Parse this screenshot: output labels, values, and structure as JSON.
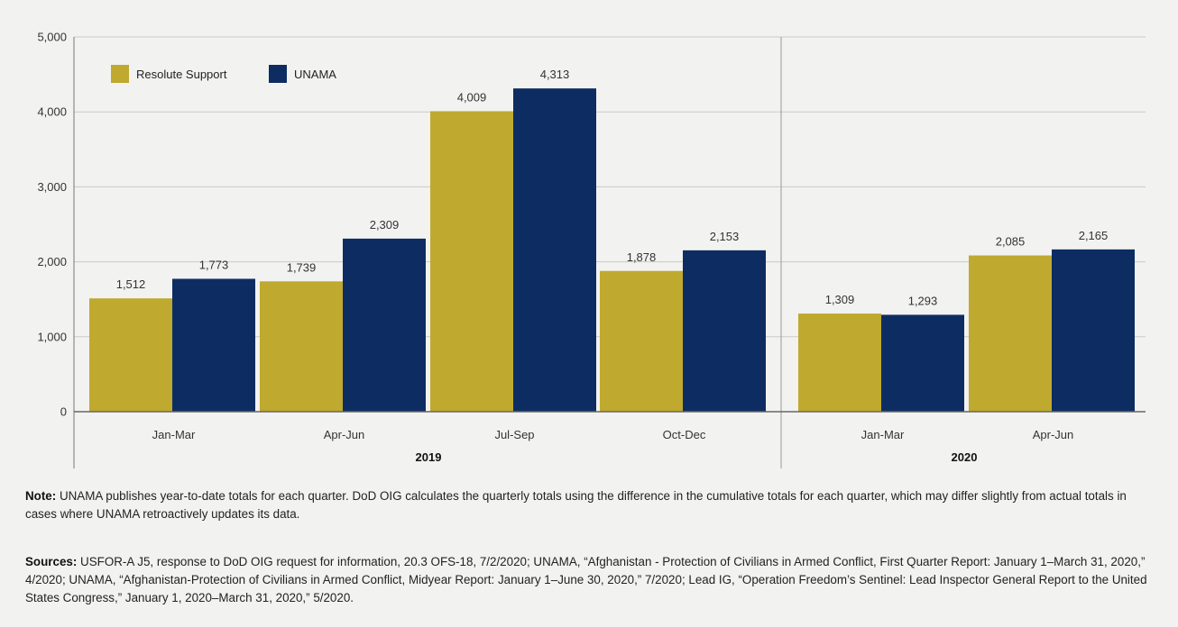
{
  "chart_data": {
    "type": "bar",
    "ylim": [
      0,
      5000
    ],
    "yticks": [
      "0",
      "1,000",
      "2,000",
      "3,000",
      "4,000",
      "5,000"
    ],
    "ytick_values": [
      0,
      1000,
      2000,
      3000,
      4000,
      5000
    ],
    "grid": true,
    "legend_position": "top-left",
    "groups": [
      {
        "label": "2019",
        "categories": [
          "Jan-Mar",
          "Apr-Jun",
          "Jul-Sep",
          "Oct-Dec"
        ]
      },
      {
        "label": "2020",
        "categories": [
          "Jan-Mar",
          "Apr-Jun"
        ]
      }
    ],
    "categories": [
      "Jan-Mar",
      "Apr-Jun",
      "Jul-Sep",
      "Oct-Dec",
      "Jan-Mar",
      "Apr-Jun"
    ],
    "series": [
      {
        "name": "Resolute Support",
        "color": "#bfa92f",
        "values": [
          1512,
          1739,
          4009,
          1878,
          1309,
          2085
        ],
        "labels": [
          "1,512",
          "1,739",
          "4,009",
          "1,878",
          "1,309",
          "2,085"
        ]
      },
      {
        "name": "UNAMA",
        "color": "#0d2d62",
        "values": [
          1773,
          2309,
          4313,
          2153,
          1293,
          2165
        ],
        "labels": [
          "1,773",
          "2,309",
          "4,313",
          "2,153",
          "1,293",
          "2,165"
        ]
      }
    ]
  },
  "note": {
    "label": "Note:",
    "text": " UNAMA publishes year-to-date totals for each quarter. DoD OIG calculates the quarterly totals using the difference in the cumulative totals for each quarter, which may differ slightly from actual totals in cases where UNAMA retroactively updates its data."
  },
  "sources": {
    "label": "Sources:",
    "text": " USFOR-A J5, response to DoD OIG request for information, 20.3 OFS-18, 7/2/2020; UNAMA, “Afghanistan - Protection of Civilians in Armed Conflict, First Quarter Report: January 1–March 31, 2020,” 4/2020; UNAMA, “Afghanistan-Protection of Civilians in Armed Conflict, Midyear Report: January 1–June 30, 2020,” 7/2020; Lead IG, “Operation Freedom’s Sentinel: Lead Inspector General Report to the United States Congress,” January 1, 2020–March 31, 2020,” 5/2020."
  }
}
